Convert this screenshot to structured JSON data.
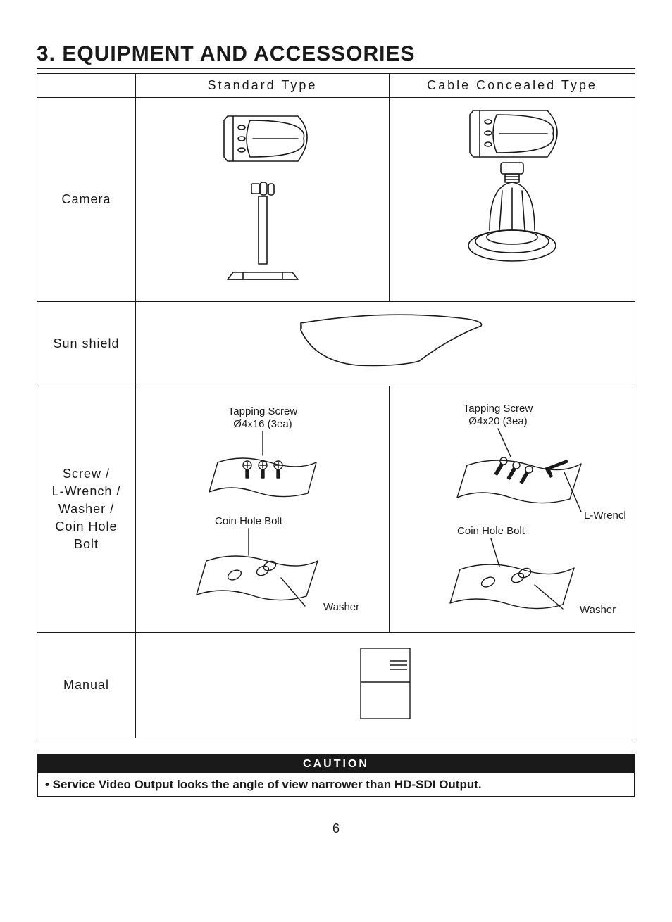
{
  "colors": {
    "text": "#1a1a1a",
    "bg": "#ffffff",
    "stroke": "#1a1a1a",
    "caution_bg": "#1a1a1a",
    "caution_fg": "#ffffff"
  },
  "fonts": {
    "heading_size_pt": 22,
    "header_size_pt": 14,
    "rowlabel_size_pt": 14,
    "annot_size_pt": 11
  },
  "heading": "3. EQUIPMENT AND ACCESSORIES",
  "columns": {
    "blank": "",
    "standard": "Standard Type",
    "concealed": "Cable Concealed Type"
  },
  "rows": {
    "camera": {
      "label": "Camera"
    },
    "sunshield": {
      "label": "Sun shield"
    },
    "hardware": {
      "label": "Screw / L-Wrench / Washer / Coin Hole Bolt",
      "standard": {
        "tapping_label": "Tapping Screw",
        "tapping_spec": "Ø4x16 (3ea)",
        "coin_label": "Coin Hole Bolt",
        "washer_label": "Washer"
      },
      "concealed": {
        "tapping_label": "Tapping Screw",
        "tapping_spec": "Ø4x20 (3ea)",
        "lwrench_label": "L-Wrench",
        "coin_label": "Coin Hole Bolt",
        "washer_label": "Washer"
      }
    },
    "manual": {
      "label": "Manual"
    }
  },
  "caution": {
    "title": "CAUTION",
    "body": "• Service Video Output looks the angle of view narrower than HD-SDI Output."
  },
  "page_number": "6",
  "diagrams": {
    "camera_standard": {
      "type": "line-drawing",
      "stroke": "#1a1a1a",
      "stroke_width": 1.5
    },
    "camera_concealed": {
      "type": "line-drawing",
      "stroke": "#1a1a1a",
      "stroke_width": 1.5
    },
    "sunshield": {
      "type": "line-drawing",
      "stroke": "#1a1a1a",
      "stroke_width": 1.5
    },
    "hardware_standard": {
      "type": "line-drawing",
      "stroke": "#1a1a1a",
      "stroke_width": 1.2
    },
    "hardware_concealed": {
      "type": "line-drawing",
      "stroke": "#1a1a1a",
      "stroke_width": 1.2
    },
    "manual": {
      "type": "line-drawing",
      "stroke": "#1a1a1a",
      "stroke_width": 1.2
    }
  }
}
